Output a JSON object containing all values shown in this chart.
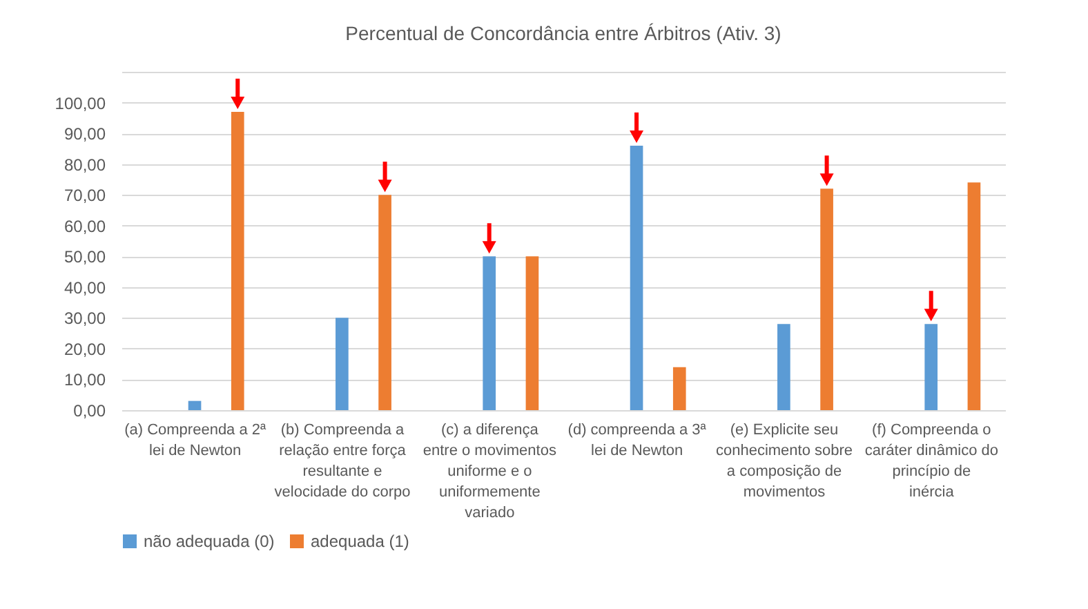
{
  "chart_data": {
    "type": "bar",
    "title": "Percentual de Concordância entre Árbitros (Ativ. 3)",
    "categories": [
      "(a) Compreenda a 2ª lei de Newton",
      "(b) Compreenda a relação entre força resultante e velocidade do corpo",
      "(c) a diferença entre o movimentos uniforme e o uniformemente variado",
      "(d) compreenda a 3ª lei de Newton",
      "(e) Explicite seu conhecimento sobre a composição de movimentos",
      "(f) Compreenda o caráter dinâmico do princípio de inércia"
    ],
    "series": [
      {
        "name": "não adequada (0)",
        "color": "#5b9bd5",
        "values": [
          3,
          30,
          50,
          86,
          28,
          28
        ]
      },
      {
        "name": "adequada (1)",
        "color": "#ed7d31",
        "values": [
          97,
          70,
          50,
          14,
          72,
          74
        ]
      }
    ],
    "ylim": [
      0,
      110
    ],
    "yticks": [
      {
        "value": 0,
        "label": "0,00"
      },
      {
        "value": 10,
        "label": "10,00"
      },
      {
        "value": 20,
        "label": "20,00"
      },
      {
        "value": 30,
        "label": "30,00"
      },
      {
        "value": 40,
        "label": "40,00"
      },
      {
        "value": 50,
        "label": "50,00"
      },
      {
        "value": 60,
        "label": "60,00"
      },
      {
        "value": 70,
        "label": "70,00"
      },
      {
        "value": 80,
        "label": "80,00"
      },
      {
        "value": 90,
        "label": "90,00"
      },
      {
        "value": 100,
        "label": "100,00"
      },
      {
        "value": 110,
        "label": null
      }
    ],
    "grid": true,
    "legend": "bottom"
  }
}
